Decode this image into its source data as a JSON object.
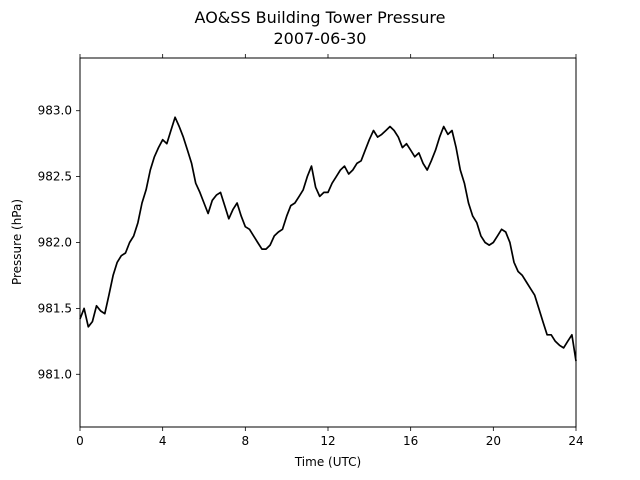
{
  "chart_data": {
    "type": "line",
    "title": "AO&SS Building Tower Pressure",
    "subtitle": "2007-06-30",
    "xlabel": "Time (UTC)",
    "ylabel": "Pressure (hPa)",
    "xlim": [
      0,
      24
    ],
    "ylim": [
      980.6,
      983.4
    ],
    "xticks": [
      0,
      4,
      8,
      12,
      16,
      20,
      24
    ],
    "xtick_labels": [
      "0",
      "4",
      "8",
      "12",
      "16",
      "20",
      "24"
    ],
    "yticks": [
      981.0,
      981.5,
      982.0,
      982.5,
      983.0
    ],
    "ytick_labels": [
      "981.0",
      "981.5",
      "982.0",
      "982.5",
      "983.0"
    ],
    "grid": false,
    "series": [
      {
        "color": "#000000",
        "x": [
          0,
          0.2,
          0.4,
          0.6,
          0.8,
          1.0,
          1.2,
          1.4,
          1.6,
          1.8,
          2.0,
          2.2,
          2.4,
          2.6,
          2.8,
          3.0,
          3.2,
          3.4,
          3.6,
          3.8,
          4.0,
          4.2,
          4.4,
          4.6,
          4.8,
          5.0,
          5.2,
          5.4,
          5.6,
          5.8,
          6.0,
          6.2,
          6.4,
          6.6,
          6.8,
          7.0,
          7.2,
          7.4,
          7.6,
          7.8,
          8.0,
          8.2,
          8.4,
          8.6,
          8.8,
          9.0,
          9.2,
          9.4,
          9.6,
          9.8,
          10.0,
          10.2,
          10.4,
          10.6,
          10.8,
          11.0,
          11.2,
          11.4,
          11.6,
          11.8,
          12.0,
          12.2,
          12.4,
          12.6,
          12.8,
          13.0,
          13.2,
          13.4,
          13.6,
          13.8,
          14.0,
          14.2,
          14.4,
          14.6,
          14.8,
          15.0,
          15.2,
          15.4,
          15.6,
          15.8,
          16.0,
          16.2,
          16.4,
          16.6,
          16.8,
          17.0,
          17.2,
          17.4,
          17.6,
          17.8,
          18.0,
          18.2,
          18.4,
          18.6,
          18.8,
          19.0,
          19.2,
          19.4,
          19.6,
          19.8,
          20.0,
          20.2,
          20.4,
          20.6,
          20.8,
          21.0,
          21.2,
          21.4,
          21.6,
          21.8,
          22.0,
          22.2,
          22.4,
          22.6,
          22.8,
          23.0,
          23.2,
          23.4,
          23.6,
          23.8,
          24.0
        ],
        "values": [
          981.42,
          981.5,
          981.36,
          981.4,
          981.52,
          981.48,
          981.46,
          981.6,
          981.75,
          981.85,
          981.9,
          981.92,
          982.0,
          982.05,
          982.15,
          982.3,
          982.4,
          982.55,
          982.65,
          982.72,
          982.78,
          982.75,
          982.85,
          982.95,
          982.88,
          982.8,
          982.7,
          982.6,
          982.45,
          982.38,
          982.3,
          982.22,
          982.32,
          982.36,
          982.38,
          982.28,
          982.18,
          982.25,
          982.3,
          982.2,
          982.12,
          982.1,
          982.05,
          982.0,
          981.95,
          981.95,
          981.98,
          982.05,
          982.08,
          982.1,
          982.2,
          982.28,
          982.3,
          982.35,
          982.4,
          982.5,
          982.58,
          982.42,
          982.35,
          982.38,
          982.38,
          982.45,
          982.5,
          982.55,
          982.58,
          982.52,
          982.55,
          982.6,
          982.62,
          982.7,
          982.78,
          982.85,
          982.8,
          982.82,
          982.85,
          982.88,
          982.85,
          982.8,
          982.72,
          982.75,
          982.7,
          982.65,
          982.68,
          982.6,
          982.55,
          982.62,
          982.7,
          982.8,
          982.88,
          982.82,
          982.85,
          982.72,
          982.55,
          982.45,
          982.3,
          982.2,
          982.15,
          982.05,
          982.0,
          981.98,
          982.0,
          982.05,
          982.1,
          982.08,
          982.0,
          981.85,
          981.78,
          981.75,
          981.7,
          981.65,
          981.6,
          981.5,
          981.4,
          981.3,
          981.3,
          981.25,
          981.22,
          981.2,
          981.25,
          981.3,
          981.1
        ]
      }
    ]
  }
}
